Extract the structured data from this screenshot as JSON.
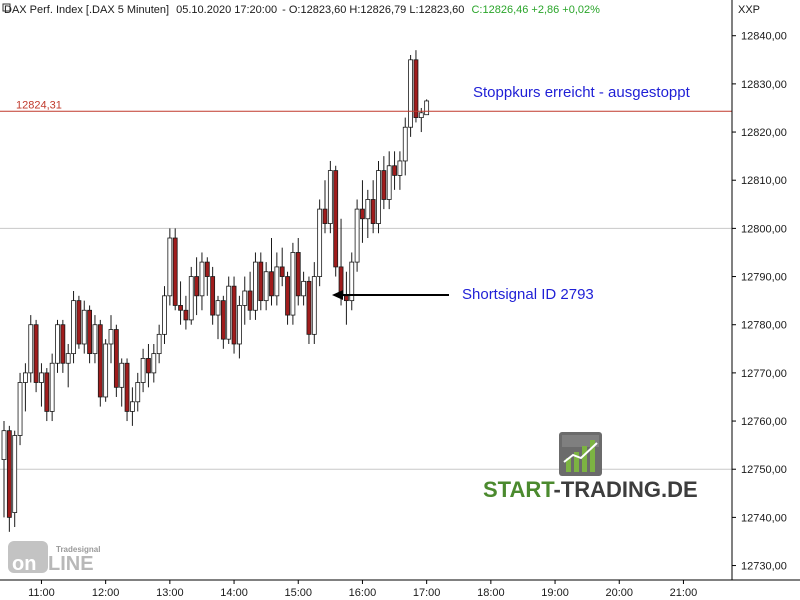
{
  "header": {
    "instrument": "DAX Perf. Index [.DAX  5 Minuten]",
    "datetime": "05.10.2020 17:20:00",
    "ohl": "O:12823,60 H:12826,79 L:12823,60",
    "close_change": "C:12826,46 +2,86 +0,02%",
    "colors": {
      "ohl": "#1a1a1a",
      "close_change": "#2aa52a"
    }
  },
  "axis_label": "XXP",
  "ref_line": {
    "value": 12824.31,
    "label": "12824,31",
    "color": "#c0392b"
  },
  "annotations": {
    "stop": "Stoppkurs erreicht - ausgestoppt",
    "short": "Shortsignal ID 2793"
  },
  "brand": {
    "left": "START",
    "dash": "-",
    "right": "TRADING.DE",
    "color_left": "#4b8a2e",
    "color_right": "#3d3d3d"
  },
  "tradesignal": {
    "small": "Tradesignal",
    "big_left": "on",
    "big_right": "LINE"
  },
  "chart_data": {
    "type": "candlestick",
    "interval_minutes": 5,
    "start_time": "10:25",
    "ylim": [
      12727,
      12847
    ],
    "y_ticks": [
      12730,
      12740,
      12750,
      12760,
      12770,
      12780,
      12790,
      12800,
      12810,
      12820,
      12830,
      12840
    ],
    "y_tick_labels": [
      "12730,00",
      "12740,00",
      "12750,00",
      "12760,00",
      "12770,00",
      "12780,00",
      "12790,00",
      "12800,00",
      "12810,00",
      "12820,00",
      "12830,00",
      "12840,00"
    ],
    "x_ticks": [
      "11:00",
      "12:00",
      "13:00",
      "14:00",
      "15:00",
      "16:00",
      "17:00",
      "18:00",
      "19:00",
      "20:00",
      "21:00"
    ],
    "grid_lines_y": [
      12750,
      12800
    ],
    "candles": [
      {
        "o": 12752,
        "h": 12760,
        "l": 12740,
        "c": 12758
      },
      {
        "o": 12758,
        "h": 12759,
        "l": 12737,
        "c": 12740
      },
      {
        "o": 12741,
        "h": 12758,
        "l": 12738,
        "c": 12757
      },
      {
        "o": 12757,
        "h": 12770,
        "l": 12755,
        "c": 12768
      },
      {
        "o": 12768,
        "h": 12772,
        "l": 12762,
        "c": 12770
      },
      {
        "o": 12770,
        "h": 12782,
        "l": 12768,
        "c": 12780
      },
      {
        "o": 12780,
        "h": 12781,
        "l": 12766,
        "c": 12768
      },
      {
        "o": 12768,
        "h": 12772,
        "l": 12763,
        "c": 12770
      },
      {
        "o": 12770,
        "h": 12771,
        "l": 12760,
        "c": 12762
      },
      {
        "o": 12762,
        "h": 12774,
        "l": 12760,
        "c": 12772
      },
      {
        "o": 12772,
        "h": 12781,
        "l": 12770,
        "c": 12780
      },
      {
        "o": 12780,
        "h": 12781,
        "l": 12770,
        "c": 12772
      },
      {
        "o": 12772,
        "h": 12776,
        "l": 12767,
        "c": 12774
      },
      {
        "o": 12774,
        "h": 12787,
        "l": 12772,
        "c": 12785
      },
      {
        "o": 12785,
        "h": 12786,
        "l": 12775,
        "c": 12776
      },
      {
        "o": 12776,
        "h": 12785,
        "l": 12774,
        "c": 12783
      },
      {
        "o": 12783,
        "h": 12784,
        "l": 12772,
        "c": 12774
      },
      {
        "o": 12774,
        "h": 12782,
        "l": 12772,
        "c": 12780
      },
      {
        "o": 12780,
        "h": 12781,
        "l": 12763,
        "c": 12765
      },
      {
        "o": 12765,
        "h": 12777,
        "l": 12764,
        "c": 12776
      },
      {
        "o": 12776,
        "h": 12782,
        "l": 12772,
        "c": 12779
      },
      {
        "o": 12779,
        "h": 12780,
        "l": 12765,
        "c": 12767
      },
      {
        "o": 12767,
        "h": 12773,
        "l": 12763,
        "c": 12772
      },
      {
        "o": 12772,
        "h": 12773,
        "l": 12760,
        "c": 12762
      },
      {
        "o": 12762,
        "h": 12767,
        "l": 12759,
        "c": 12764
      },
      {
        "o": 12764,
        "h": 12770,
        "l": 12762,
        "c": 12768
      },
      {
        "o": 12768,
        "h": 12775,
        "l": 12766,
        "c": 12773
      },
      {
        "o": 12773,
        "h": 12776,
        "l": 12767,
        "c": 12770
      },
      {
        "o": 12770,
        "h": 12776,
        "l": 12768,
        "c": 12774
      },
      {
        "o": 12774,
        "h": 12780,
        "l": 12772,
        "c": 12778
      },
      {
        "o": 12778,
        "h": 12788,
        "l": 12776,
        "c": 12786
      },
      {
        "o": 12786,
        "h": 12800,
        "l": 12784,
        "c": 12798
      },
      {
        "o": 12798,
        "h": 12800,
        "l": 12783,
        "c": 12784
      },
      {
        "o": 12784,
        "h": 12789,
        "l": 12780,
        "c": 12783
      },
      {
        "o": 12783,
        "h": 12786,
        "l": 12779,
        "c": 12781
      },
      {
        "o": 12781,
        "h": 12792,
        "l": 12780,
        "c": 12790
      },
      {
        "o": 12790,
        "h": 12794,
        "l": 12782,
        "c": 12786
      },
      {
        "o": 12786,
        "h": 12795,
        "l": 12783,
        "c": 12793
      },
      {
        "o": 12793,
        "h": 12794,
        "l": 12786,
        "c": 12790
      },
      {
        "o": 12790,
        "h": 12792,
        "l": 12780,
        "c": 12782
      },
      {
        "o": 12782,
        "h": 12786,
        "l": 12777,
        "c": 12785
      },
      {
        "o": 12785,
        "h": 12786,
        "l": 12775,
        "c": 12777
      },
      {
        "o": 12777,
        "h": 12790,
        "l": 12776,
        "c": 12788
      },
      {
        "o": 12788,
        "h": 12790,
        "l": 12774,
        "c": 12776
      },
      {
        "o": 12776,
        "h": 12786,
        "l": 12773,
        "c": 12784
      },
      {
        "o": 12784,
        "h": 12790,
        "l": 12780,
        "c": 12787
      },
      {
        "o": 12787,
        "h": 12791,
        "l": 12781,
        "c": 12783
      },
      {
        "o": 12783,
        "h": 12795,
        "l": 12781,
        "c": 12793
      },
      {
        "o": 12793,
        "h": 12795,
        "l": 12783,
        "c": 12785
      },
      {
        "o": 12785,
        "h": 12793,
        "l": 12783,
        "c": 12791
      },
      {
        "o": 12791,
        "h": 12798,
        "l": 12784,
        "c": 12786
      },
      {
        "o": 12786,
        "h": 12795,
        "l": 12784,
        "c": 12792
      },
      {
        "o": 12792,
        "h": 12796,
        "l": 12788,
        "c": 12790
      },
      {
        "o": 12790,
        "h": 12791,
        "l": 12780,
        "c": 12782
      },
      {
        "o": 12782,
        "h": 12797,
        "l": 12780,
        "c": 12795
      },
      {
        "o": 12795,
        "h": 12798,
        "l": 12784,
        "c": 12786
      },
      {
        "o": 12786,
        "h": 12791,
        "l": 12784,
        "c": 12789
      },
      {
        "o": 12789,
        "h": 12790,
        "l": 12776,
        "c": 12778
      },
      {
        "o": 12778,
        "h": 12793,
        "l": 12776,
        "c": 12790
      },
      {
        "o": 12790,
        "h": 12806,
        "l": 12788,
        "c": 12804
      },
      {
        "o": 12804,
        "h": 12810,
        "l": 12799,
        "c": 12801
      },
      {
        "o": 12801,
        "h": 12814,
        "l": 12799,
        "c": 12812
      },
      {
        "o": 12812,
        "h": 12813,
        "l": 12790,
        "c": 12792
      },
      {
        "o": 12792,
        "h": 12802,
        "l": 12784,
        "c": 12786
      },
      {
        "o": 12786,
        "h": 12791,
        "l": 12780,
        "c": 12785
      },
      {
        "o": 12785,
        "h": 12795,
        "l": 12783,
        "c": 12793
      },
      {
        "o": 12793,
        "h": 12806,
        "l": 12791,
        "c": 12804
      },
      {
        "o": 12804,
        "h": 12810,
        "l": 12797,
        "c": 12802
      },
      {
        "o": 12802,
        "h": 12808,
        "l": 12798,
        "c": 12806
      },
      {
        "o": 12806,
        "h": 12810,
        "l": 12799,
        "c": 12801
      },
      {
        "o": 12801,
        "h": 12814,
        "l": 12799,
        "c": 12812
      },
      {
        "o": 12812,
        "h": 12815,
        "l": 12804,
        "c": 12806
      },
      {
        "o": 12806,
        "h": 12816,
        "l": 12804,
        "c": 12813
      },
      {
        "o": 12813,
        "h": 12816,
        "l": 12808,
        "c": 12811
      },
      {
        "o": 12811,
        "h": 12816,
        "l": 12808,
        "c": 12814
      },
      {
        "o": 12814,
        "h": 12823,
        "l": 12811,
        "c": 12821
      },
      {
        "o": 12821,
        "h": 12836,
        "l": 12819,
        "c": 12835
      },
      {
        "o": 12835,
        "h": 12837,
        "l": 12822,
        "c": 12823
      },
      {
        "o": 12823,
        "h": 12825,
        "l": 12820,
        "c": 12824
      },
      {
        "o": 12823.6,
        "h": 12826.79,
        "l": 12823.6,
        "c": 12826.46
      }
    ],
    "up_color": "#ffffff",
    "down_color": "#a01c1c",
    "wick_color": "#1a1a1a"
  }
}
